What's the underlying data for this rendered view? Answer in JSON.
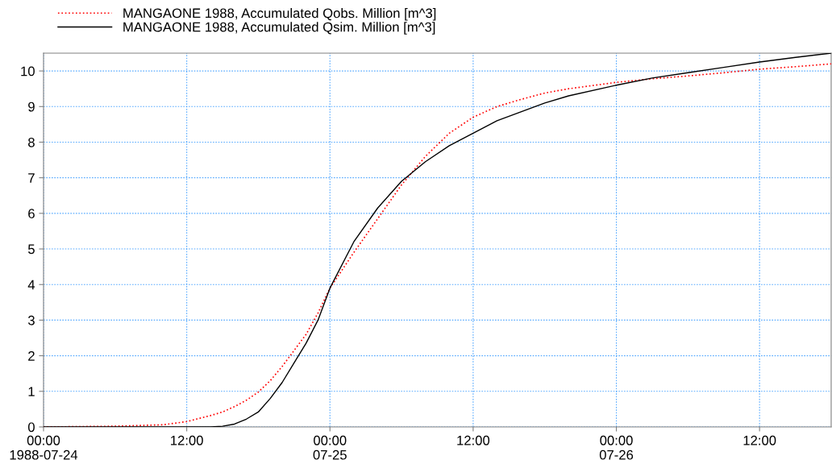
{
  "chart_data": {
    "type": "line",
    "x": [
      "1988-07-24T00:00",
      "1988-07-24T06:00",
      "1988-07-24T10:00",
      "1988-07-24T12:00",
      "1988-07-24T14:00",
      "1988-07-24T15:00",
      "1988-07-24T16:00",
      "1988-07-24T17:00",
      "1988-07-24T18:00",
      "1988-07-24T19:00",
      "1988-07-24T20:00",
      "1988-07-24T21:00",
      "1988-07-24T22:00",
      "1988-07-24T23:00",
      "1988-07-25T00:00",
      "1988-07-25T02:00",
      "1988-07-25T04:00",
      "1988-07-25T06:00",
      "1988-07-25T08:00",
      "1988-07-25T10:00",
      "1988-07-25T12:00",
      "1988-07-25T14:00",
      "1988-07-25T16:00",
      "1988-07-25T18:00",
      "1988-07-25T20:00",
      "1988-07-26T00:00",
      "1988-07-26T03:00",
      "1988-07-26T06:00",
      "1988-07-26T09:00",
      "1988-07-26T12:00",
      "1988-07-26T15:00",
      "1988-07-26T18:00"
    ],
    "series": [
      {
        "name": "MANGAONE 1988, Accumulated Qobs. Million [m^3]",
        "color": "#ff0000",
        "line_style": "dotted",
        "values": [
          0,
          0.02,
          0.06,
          0.15,
          0.32,
          0.42,
          0.57,
          0.75,
          0.98,
          1.3,
          1.7,
          2.15,
          2.6,
          3.2,
          3.9,
          4.9,
          5.85,
          6.8,
          7.6,
          8.25,
          8.7,
          9.0,
          9.2,
          9.38,
          9.5,
          9.68,
          9.78,
          9.86,
          9.95,
          10.05,
          10.12,
          10.2
        ]
      },
      {
        "name": "MANGAONE 1988, Accumulated Qsim. Million [m^3]",
        "color": "#000000",
        "line_style": "solid",
        "values": [
          0,
          0,
          0,
          0,
          0,
          0.02,
          0.08,
          0.22,
          0.42,
          0.8,
          1.25,
          1.8,
          2.35,
          3.0,
          3.9,
          5.2,
          6.15,
          6.9,
          7.45,
          7.9,
          8.25,
          8.6,
          8.85,
          9.1,
          9.3,
          9.6,
          9.8,
          9.95,
          10.1,
          10.25,
          10.38,
          10.5
        ]
      }
    ],
    "xlim": [
      "1988-07-24T00:00",
      "1988-07-26T18:00"
    ],
    "xticks": [
      {
        "value": "1988-07-24T00:00",
        "label": "00:00\n1988-07-24"
      },
      {
        "value": "1988-07-24T12:00",
        "label": "12:00"
      },
      {
        "value": "1988-07-25T00:00",
        "label": "00:00\n07-25"
      },
      {
        "value": "1988-07-25T12:00",
        "label": "12:00"
      },
      {
        "value": "1988-07-26T00:00",
        "label": "00:00\n07-26"
      },
      {
        "value": "1988-07-26T12:00",
        "label": "12:00"
      }
    ],
    "ylim": [
      0,
      10.5
    ],
    "yticks": [
      0,
      1,
      2,
      3,
      4,
      5,
      6,
      7,
      8,
      9,
      10
    ],
    "grid": true,
    "legend": "top left"
  }
}
